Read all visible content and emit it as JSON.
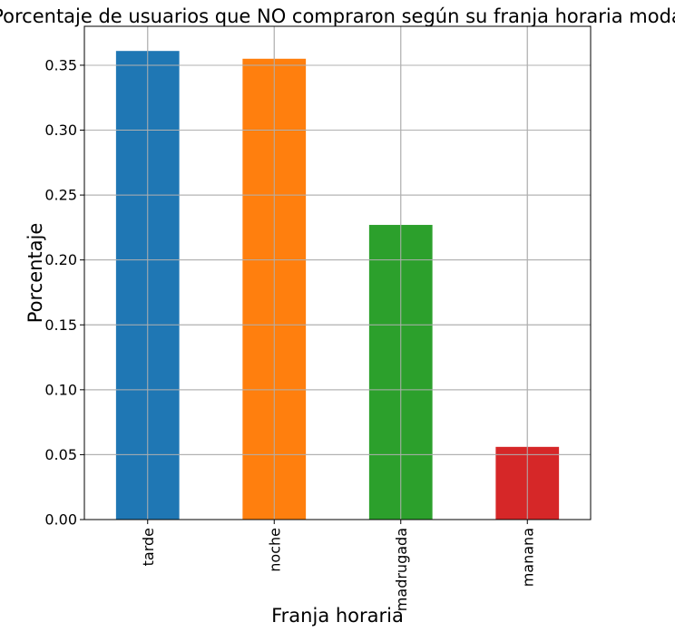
{
  "chart_data": {
    "type": "bar",
    "title": "Porcentaje de usuarios que NO compraron según su franja horaria moda",
    "xlabel": "Franja horaria",
    "ylabel": "Porcentaje",
    "categories": [
      "tarde",
      "noche",
      "madrugada",
      "manana"
    ],
    "values": [
      0.361,
      0.355,
      0.227,
      0.056
    ],
    "colors": [
      "#1f77b4",
      "#ff7f0e",
      "#2ca02c",
      "#d62728"
    ],
    "yticks": [
      "0.00",
      "0.05",
      "0.10",
      "0.15",
      "0.20",
      "0.25",
      "0.30",
      "0.35"
    ],
    "ylim": [
      0,
      0.38
    ],
    "grid": true,
    "legend": false
  }
}
